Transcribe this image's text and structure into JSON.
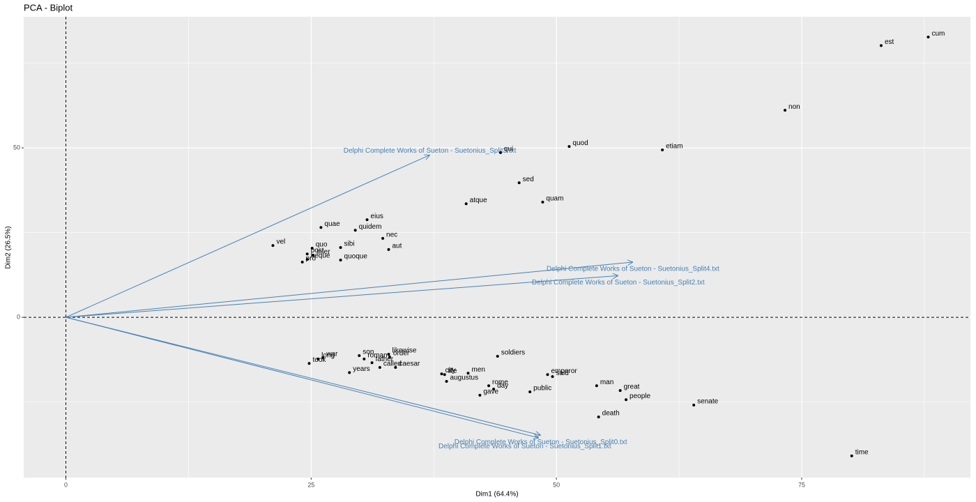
{
  "chart_data": {
    "type": "biplot",
    "title": "PCA - Biplot",
    "xlabel": "Dim1 (64.4%)",
    "ylabel": "Dim2 (26.5%)",
    "xlim": [
      -4.3,
      92.2
    ],
    "ylim": [
      -47.3,
      88.7
    ],
    "xticks": [
      0,
      25,
      50,
      75
    ],
    "yticks": [
      0,
      50
    ],
    "grid": true,
    "hline": 0,
    "vline": 0,
    "points": {
      "color": "#000000",
      "labels": [
        "cum",
        "est",
        "non",
        "etiam",
        "quod",
        "qui",
        "sed",
        "quam",
        "atque",
        "eius",
        "quidem",
        "quae",
        "nec",
        "aut",
        "vel",
        "quo",
        "sibi",
        "post",
        "inter",
        "pro",
        "neque",
        "quoque",
        "war",
        "long",
        "took",
        "son",
        "years",
        "likewise",
        "order",
        "father",
        "roman",
        "called",
        "caesar",
        "city",
        "augustus",
        "life",
        "men",
        "gave",
        "soldiers",
        "rome",
        "day",
        "public",
        "emperor",
        "said",
        "man",
        "great",
        "people",
        "death",
        "senate",
        "time"
      ],
      "x": [
        87.9,
        83.1,
        73.3,
        60.8,
        51.3,
        44.3,
        46.2,
        48.6,
        40.8,
        30.7,
        29.5,
        26.0,
        32.3,
        32.9,
        21.1,
        25.1,
        28.0,
        24.6,
        25.2,
        24.1,
        24.6,
        28.0,
        26.2,
        25.7,
        24.8,
        29.9,
        28.9,
        32.9,
        33.0,
        31.2,
        30.4,
        32.0,
        33.6,
        38.3,
        38.8,
        38.6,
        41.0,
        42.2,
        44.0,
        43.1,
        43.6,
        47.3,
        49.1,
        49.6,
        54.1,
        56.5,
        57.1,
        54.3,
        64.0,
        80.1
      ],
      "y": [
        82.7,
        80.2,
        61.1,
        49.4,
        50.4,
        48.6,
        39.7,
        34.0,
        33.5,
        28.8,
        25.7,
        26.5,
        23.3,
        20.0,
        21.2,
        20.4,
        20.6,
        18.7,
        18.3,
        16.3,
        17.1,
        16.9,
        -11.9,
        -12.3,
        -13.6,
        -11.3,
        -16.3,
        -10.9,
        -11.7,
        -13.4,
        -12.3,
        -14.8,
        -14.8,
        -16.7,
        -18.9,
        -16.9,
        -16.5,
        -23.0,
        -11.5,
        -20.2,
        -21.2,
        -22.0,
        -16.9,
        -17.5,
        -20.2,
        -21.6,
        -24.3,
        -29.4,
        -25.9,
        -40.9
      ]
    },
    "arrows": {
      "color": "#4682b4",
      "labels": [
        "Delphi Complete Works of Sueton - Suetonius_Split3.txt",
        "Delphi Complete Works of Sueton - Suetonius_Split4.txt",
        "Delphi Complete Works of Sueton - Suetonius_Split2.txt",
        "Delphi Complete Works of Sueton - Suetonius_Split0.txt",
        "Delphi Complete Works of Sueton - Suetonius_Split1.txt"
      ],
      "x": [
        37.1,
        57.8,
        56.3,
        48.4,
        48.2
      ],
      "y": [
        47.9,
        16.3,
        12.3,
        -34.8,
        -35.6
      ]
    }
  }
}
